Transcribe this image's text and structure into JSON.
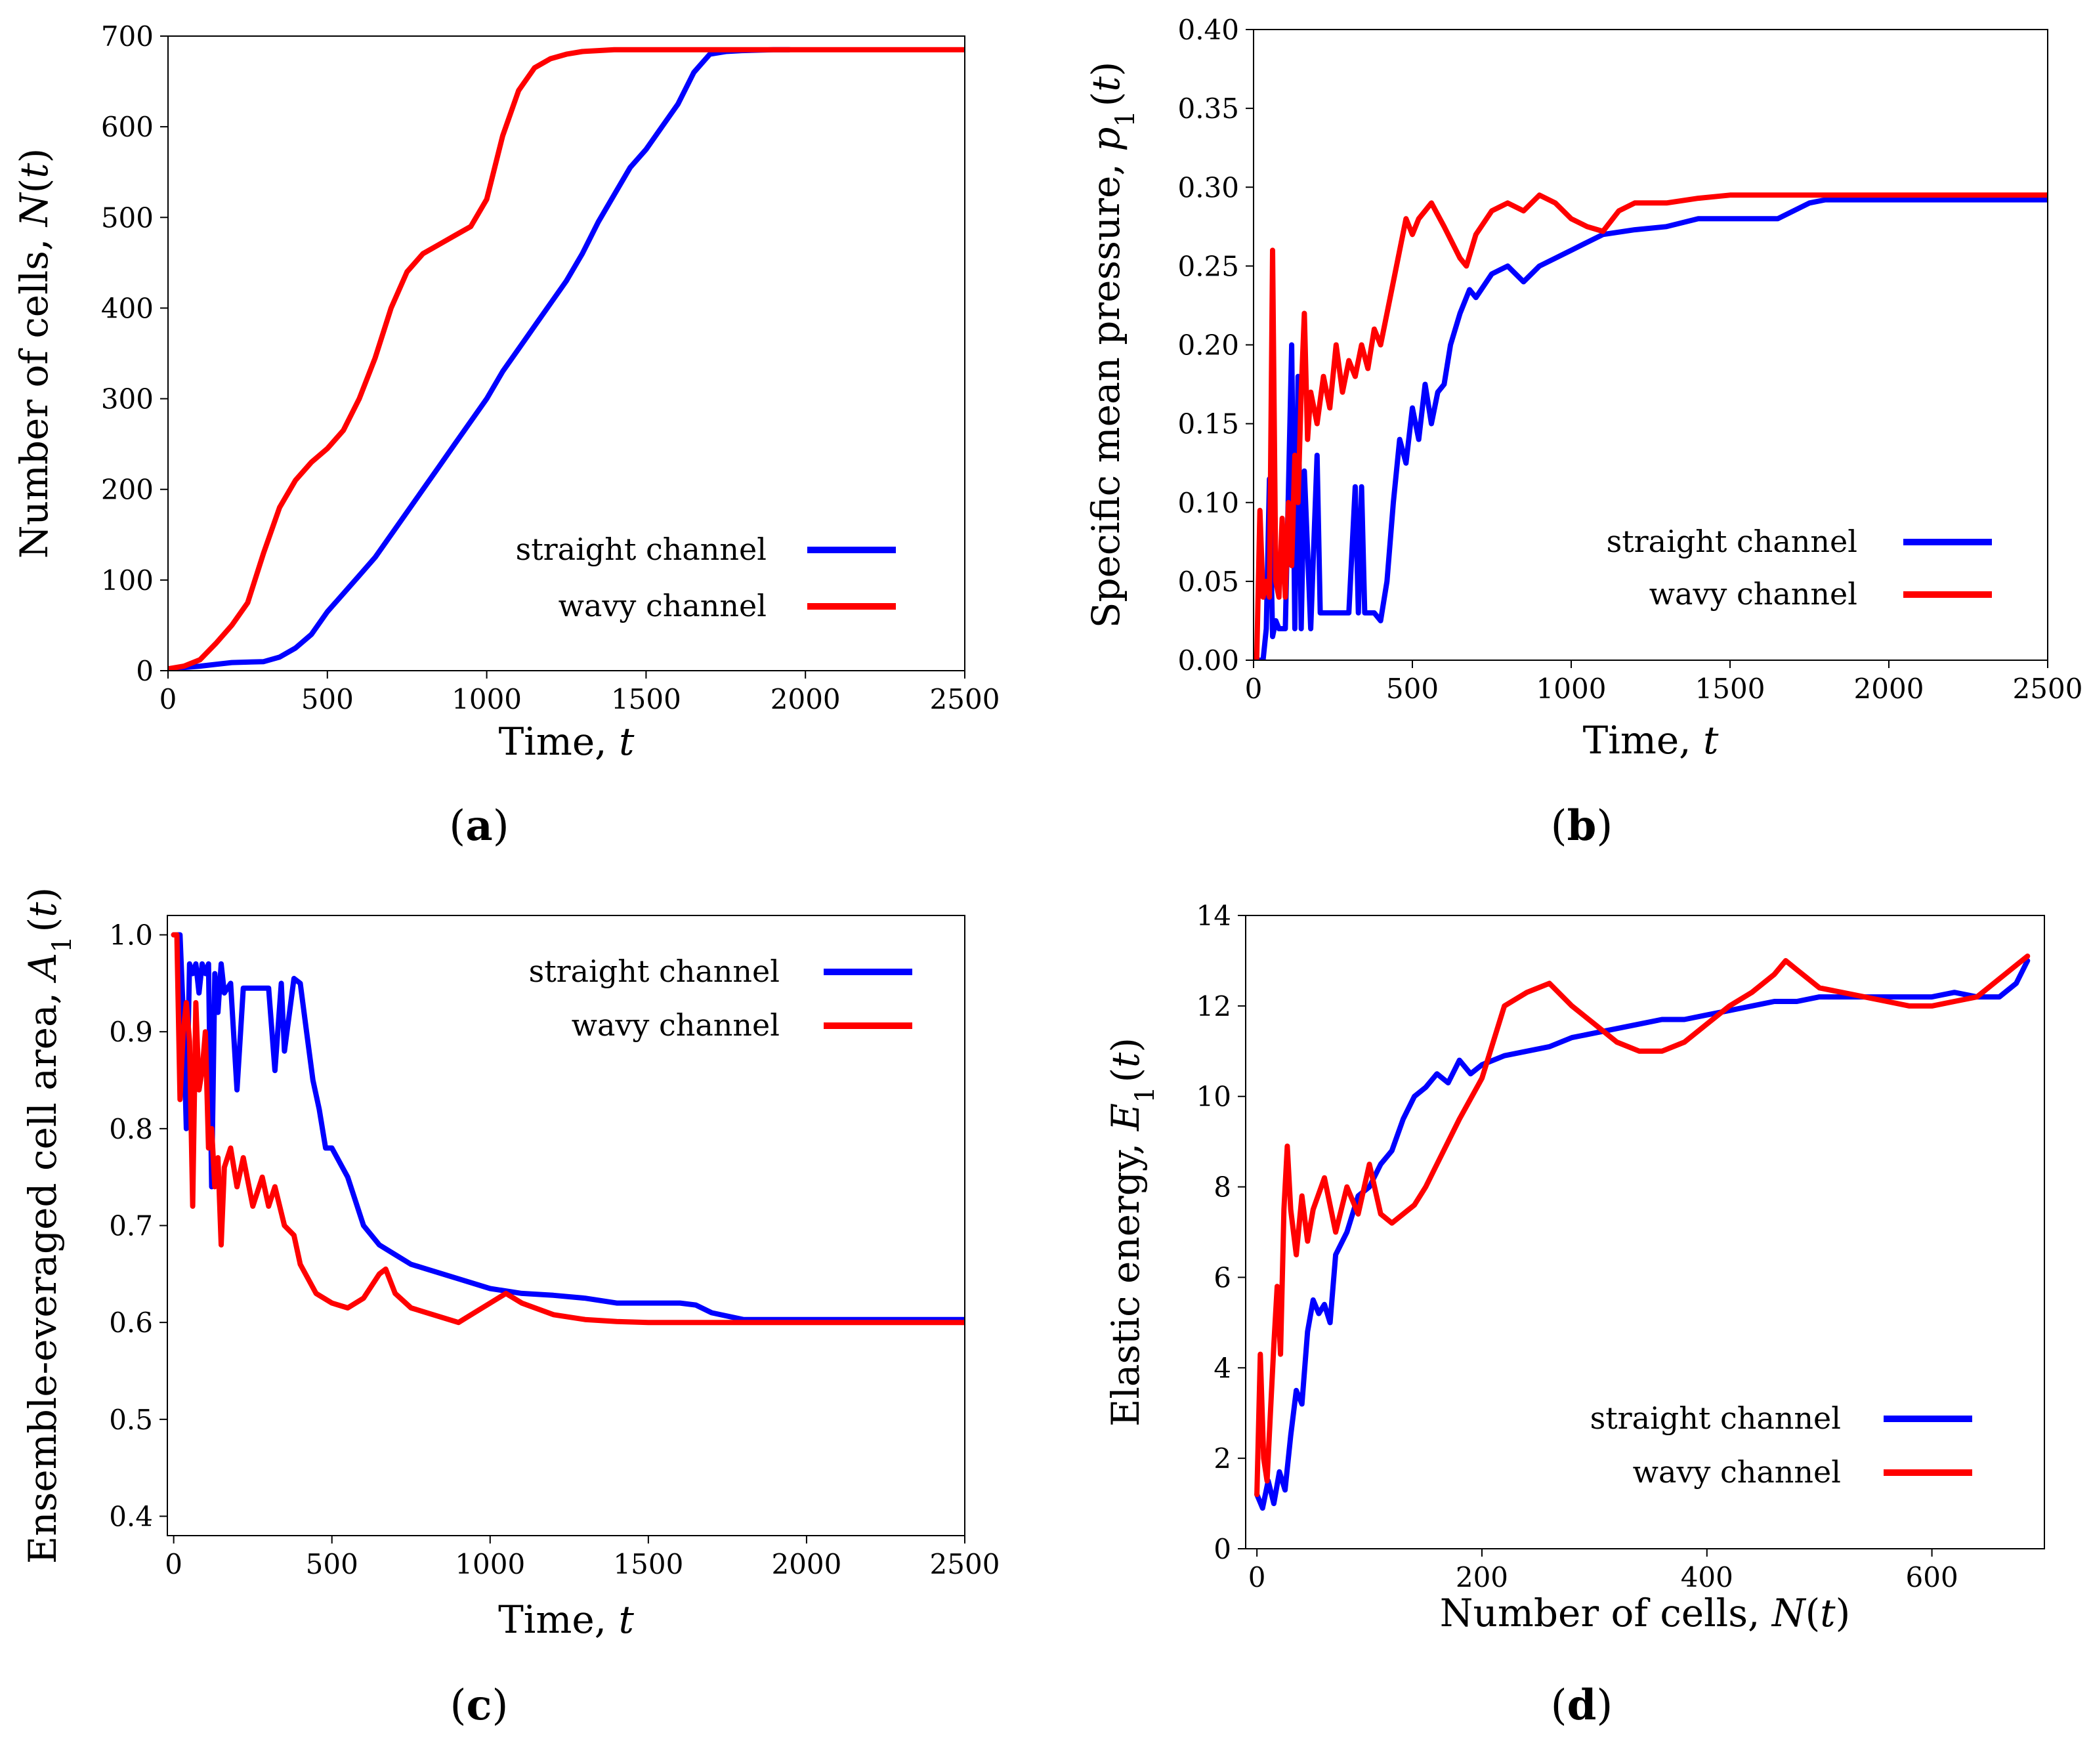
{
  "chart_data": [
    {
      "id": "a",
      "type": "line",
      "panel_label": "(a)",
      "title": "",
      "xlabel": "Time, t",
      "ylabel": "Number of cells, N(t)",
      "xlim": [
        0,
        2500
      ],
      "ylim": [
        0,
        700
      ],
      "xticks": [
        0,
        500,
        1000,
        1500,
        2000,
        2500
      ],
      "yticks": [
        0,
        100,
        200,
        300,
        400,
        500,
        600,
        700
      ],
      "legend_position": "lower-right",
      "series": [
        {
          "name": "straight channel",
          "color": "#0000ff",
          "x": [
            0,
            100,
            200,
            300,
            350,
            400,
            450,
            500,
            550,
            600,
            650,
            700,
            750,
            800,
            850,
            900,
            950,
            1000,
            1050,
            1100,
            1150,
            1200,
            1250,
            1300,
            1350,
            1400,
            1450,
            1500,
            1550,
            1600,
            1650,
            1700,
            1750,
            1800,
            1900,
            1950
          ],
          "y": [
            2,
            5,
            9,
            10,
            15,
            25,
            40,
            65,
            85,
            105,
            125,
            150,
            175,
            200,
            225,
            250,
            275,
            300,
            330,
            355,
            380,
            405,
            430,
            460,
            495,
            525,
            555,
            575,
            600,
            625,
            660,
            680,
            683,
            684,
            685,
            685
          ]
        },
        {
          "name": "wavy channel",
          "color": "#ff0000",
          "x": [
            0,
            50,
            100,
            150,
            200,
            250,
            300,
            350,
            400,
            450,
            500,
            550,
            600,
            650,
            700,
            750,
            800,
            850,
            900,
            950,
            1000,
            1050,
            1100,
            1150,
            1200,
            1250,
            1300,
            1400,
            1500,
            1600,
            1800,
            2000,
            2300,
            2500
          ],
          "y": [
            2,
            5,
            12,
            30,
            50,
            75,
            130,
            180,
            210,
            230,
            245,
            265,
            300,
            345,
            400,
            440,
            460,
            470,
            480,
            490,
            520,
            590,
            640,
            665,
            675,
            680,
            683,
            685,
            685,
            685,
            685,
            685,
            685,
            685
          ]
        }
      ]
    },
    {
      "id": "b",
      "type": "line",
      "panel_label": "(b)",
      "title": "",
      "xlabel": "Time, t",
      "ylabel": "Specific mean pressure, p1(t)",
      "xlim": [
        0,
        2500
      ],
      "ylim": [
        0.0,
        0.4
      ],
      "xticks": [
        0,
        500,
        1000,
        1500,
        2000,
        2500
      ],
      "yticks": [
        0.0,
        0.05,
        0.1,
        0.15,
        0.2,
        0.25,
        0.3,
        0.35,
        0.4
      ],
      "legend_position": "center-right",
      "series": [
        {
          "name": "straight channel",
          "color": "#0000ff",
          "x": [
            0,
            20,
            30,
            40,
            50,
            60,
            70,
            80,
            100,
            120,
            130,
            140,
            150,
            160,
            180,
            200,
            210,
            220,
            250,
            300,
            320,
            330,
            340,
            350,
            380,
            400,
            420,
            440,
            460,
            480,
            500,
            520,
            540,
            560,
            580,
            600,
            620,
            650,
            680,
            700,
            750,
            800,
            850,
            900,
            950,
            1000,
            1050,
            1100,
            1200,
            1300,
            1400,
            1500,
            1600,
            1650,
            1700,
            1750,
            1800,
            1900,
            2000,
            2200,
            2500
          ],
          "y": [
            0.0,
            0.0,
            0.0,
            0.02,
            0.115,
            0.015,
            0.025,
            0.02,
            0.02,
            0.2,
            0.02,
            0.18,
            0.02,
            0.12,
            0.02,
            0.13,
            0.03,
            0.03,
            0.03,
            0.03,
            0.11,
            0.03,
            0.11,
            0.03,
            0.03,
            0.025,
            0.05,
            0.1,
            0.14,
            0.125,
            0.16,
            0.14,
            0.175,
            0.15,
            0.17,
            0.175,
            0.2,
            0.22,
            0.235,
            0.23,
            0.245,
            0.25,
            0.24,
            0.25,
            0.255,
            0.26,
            0.265,
            0.27,
            0.273,
            0.275,
            0.28,
            0.28,
            0.28,
            0.28,
            0.285,
            0.29,
            0.292,
            0.292,
            0.292,
            0.292,
            0.292
          ]
        },
        {
          "name": "wavy channel",
          "color": "#ff0000",
          "x": [
            0,
            10,
            20,
            30,
            40,
            50,
            60,
            70,
            80,
            90,
            100,
            110,
            120,
            130,
            140,
            150,
            160,
            170,
            180,
            200,
            220,
            240,
            260,
            280,
            300,
            320,
            340,
            360,
            380,
            400,
            420,
            450,
            480,
            500,
            520,
            540,
            560,
            600,
            650,
            670,
            700,
            750,
            800,
            850,
            900,
            950,
            1000,
            1050,
            1100,
            1150,
            1200,
            1300,
            1400,
            1500,
            1600,
            2000,
            2500
          ],
          "y": [
            0.0,
            0.0,
            0.095,
            0.04,
            0.05,
            0.04,
            0.26,
            0.05,
            0.04,
            0.09,
            0.04,
            0.1,
            0.06,
            0.13,
            0.1,
            0.17,
            0.22,
            0.14,
            0.17,
            0.15,
            0.18,
            0.16,
            0.2,
            0.17,
            0.19,
            0.18,
            0.2,
            0.185,
            0.21,
            0.2,
            0.22,
            0.25,
            0.28,
            0.27,
            0.28,
            0.285,
            0.29,
            0.275,
            0.255,
            0.25,
            0.27,
            0.285,
            0.29,
            0.285,
            0.295,
            0.29,
            0.28,
            0.275,
            0.272,
            0.285,
            0.29,
            0.29,
            0.293,
            0.295,
            0.295,
            0.295,
            0.295
          ]
        }
      ]
    },
    {
      "id": "c",
      "type": "line",
      "panel_label": "(c)",
      "title": "",
      "xlabel": "Time, t",
      "ylabel": "Ensemble-everaged cell area, A1(t)",
      "xlim": [
        -20,
        2500
      ],
      "ylim": [
        0.38,
        1.02
      ],
      "xticks": [
        0,
        500,
        1000,
        1500,
        2000,
        2500
      ],
      "yticks": [
        0.4,
        0.5,
        0.6,
        0.7,
        0.8,
        0.9,
        1.0
      ],
      "legend_position": "upper-right",
      "series": [
        {
          "name": "straight channel",
          "color": "#0000ff",
          "x": [
            0,
            10,
            20,
            30,
            40,
            50,
            60,
            70,
            80,
            90,
            100,
            110,
            120,
            130,
            140,
            150,
            160,
            180,
            200,
            220,
            300,
            320,
            340,
            350,
            380,
            400,
            420,
            440,
            460,
            480,
            500,
            550,
            600,
            650,
            700,
            750,
            800,
            900,
            1000,
            1100,
            1200,
            1300,
            1400,
            1500,
            1600,
            1650,
            1700,
            1800,
            2000,
            2500
          ],
          "y": [
            1.0,
            1.0,
            1.0,
            0.92,
            0.8,
            0.97,
            0.96,
            0.97,
            0.94,
            0.97,
            0.96,
            0.97,
            0.74,
            0.96,
            0.92,
            0.97,
            0.94,
            0.95,
            0.84,
            0.945,
            0.945,
            0.86,
            0.95,
            0.88,
            0.955,
            0.95,
            0.9,
            0.85,
            0.82,
            0.78,
            0.78,
            0.75,
            0.7,
            0.68,
            0.67,
            0.66,
            0.655,
            0.645,
            0.635,
            0.63,
            0.628,
            0.625,
            0.62,
            0.62,
            0.62,
            0.618,
            0.61,
            0.603,
            0.603,
            0.603
          ]
        },
        {
          "name": "wavy channel",
          "color": "#ff0000",
          "x": [
            0,
            10,
            20,
            30,
            40,
            50,
            60,
            70,
            80,
            90,
            100,
            110,
            120,
            130,
            140,
            150,
            160,
            180,
            200,
            220,
            250,
            280,
            300,
            320,
            350,
            380,
            400,
            450,
            500,
            550,
            600,
            650,
            670,
            700,
            750,
            800,
            850,
            900,
            950,
            1000,
            1050,
            1100,
            1200,
            1300,
            1400,
            1500,
            1700,
            2000,
            2500
          ],
          "y": [
            1.0,
            1.0,
            0.83,
            0.9,
            0.93,
            0.89,
            0.72,
            0.93,
            0.84,
            0.86,
            0.9,
            0.78,
            0.8,
            0.74,
            0.77,
            0.68,
            0.76,
            0.78,
            0.74,
            0.77,
            0.72,
            0.75,
            0.72,
            0.74,
            0.7,
            0.69,
            0.66,
            0.63,
            0.62,
            0.615,
            0.625,
            0.65,
            0.655,
            0.63,
            0.615,
            0.61,
            0.605,
            0.6,
            0.61,
            0.62,
            0.63,
            0.62,
            0.608,
            0.603,
            0.601,
            0.6,
            0.6,
            0.6,
            0.6
          ]
        }
      ]
    },
    {
      "id": "d",
      "type": "line",
      "panel_label": "(d)",
      "title": "",
      "xlabel": "Number of cells, N(t)",
      "ylabel": "Elastic energy, E1(t)",
      "xlim": [
        -10,
        700
      ],
      "ylim": [
        0,
        14
      ],
      "xticks": [
        0,
        200,
        400,
        600
      ],
      "yticks": [
        0,
        2,
        4,
        6,
        8,
        10,
        12,
        14
      ],
      "legend_position": "lower-right",
      "series": [
        {
          "name": "straight channel",
          "color": "#0000ff",
          "x": [
            0,
            5,
            10,
            15,
            20,
            25,
            30,
            35,
            40,
            45,
            50,
            55,
            60,
            65,
            70,
            80,
            90,
            100,
            110,
            120,
            130,
            140,
            150,
            160,
            170,
            180,
            190,
            200,
            220,
            240,
            260,
            280,
            300,
            320,
            340,
            360,
            380,
            400,
            420,
            440,
            460,
            480,
            500,
            520,
            540,
            560,
            580,
            600,
            620,
            640,
            660,
            675,
            685
          ],
          "y": [
            1.2,
            0.9,
            1.5,
            1.0,
            1.7,
            1.3,
            2.5,
            3.5,
            3.2,
            4.8,
            5.5,
            5.2,
            5.4,
            5.0,
            6.5,
            7.0,
            7.8,
            8.0,
            8.5,
            8.8,
            9.5,
            10.0,
            10.2,
            10.5,
            10.3,
            10.8,
            10.5,
            10.7,
            10.9,
            11.0,
            11.1,
            11.3,
            11.4,
            11.5,
            11.6,
            11.7,
            11.7,
            11.8,
            11.9,
            12.0,
            12.1,
            12.1,
            12.2,
            12.2,
            12.2,
            12.2,
            12.2,
            12.2,
            12.3,
            12.2,
            12.2,
            12.5,
            13.0
          ]
        },
        {
          "name": "wavy channel",
          "color": "#ff0000",
          "x": [
            0,
            3,
            6,
            9,
            12,
            15,
            18,
            21,
            24,
            27,
            30,
            35,
            40,
            45,
            50,
            60,
            70,
            80,
            90,
            100,
            110,
            120,
            130,
            140,
            150,
            160,
            180,
            200,
            220,
            240,
            260,
            280,
            300,
            320,
            340,
            360,
            380,
            400,
            420,
            440,
            460,
            470,
            480,
            500,
            520,
            540,
            560,
            580,
            600,
            620,
            640,
            660,
            675,
            685
          ],
          "y": [
            1.2,
            4.3,
            2.0,
            1.5,
            3.0,
            4.5,
            5.8,
            4.3,
            7.5,
            8.9,
            7.5,
            6.5,
            7.8,
            6.8,
            7.5,
            8.2,
            7.0,
            8.0,
            7.4,
            8.5,
            7.4,
            7.2,
            7.4,
            7.6,
            8.0,
            8.5,
            9.5,
            10.4,
            12.0,
            12.3,
            12.5,
            12.0,
            11.6,
            11.2,
            11.0,
            11.0,
            11.2,
            11.6,
            12.0,
            12.3,
            12.7,
            13.0,
            12.8,
            12.4,
            12.3,
            12.2,
            12.1,
            12.0,
            12.0,
            12.1,
            12.2,
            12.6,
            12.9,
            13.1
          ]
        }
      ]
    }
  ]
}
